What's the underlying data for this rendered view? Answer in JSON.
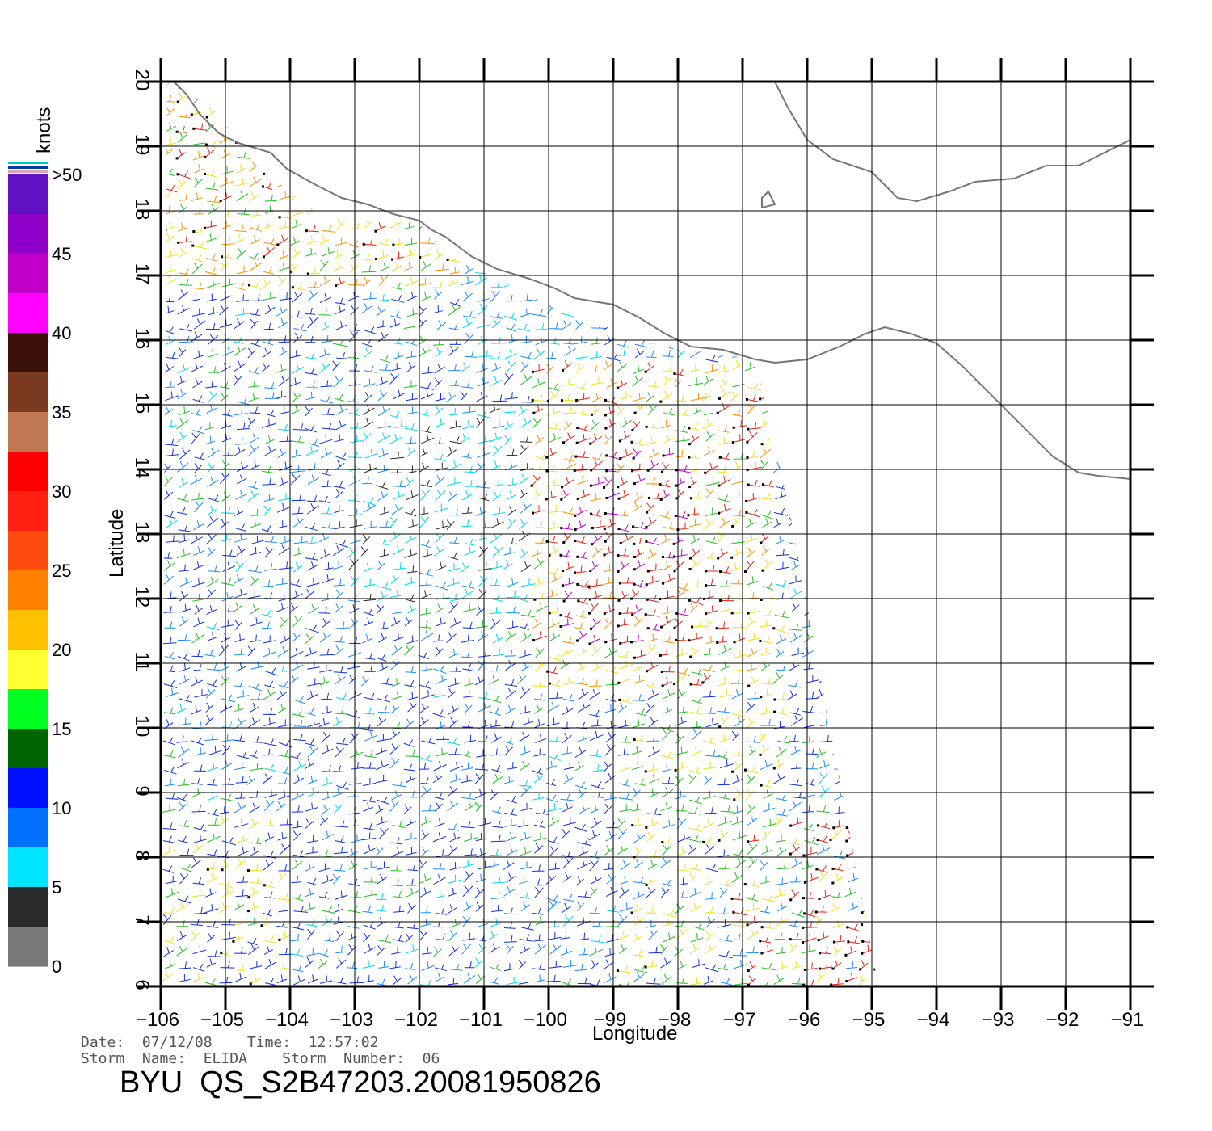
{
  "map": {
    "x_label": "Longitude",
    "y_label": "Latitude",
    "lon_range": [
      -106,
      -91
    ],
    "lat_range": [
      6,
      20
    ],
    "lon_ticks": [
      -106,
      -105,
      -104,
      -103,
      -102,
      -101,
      -100,
      -99,
      -98,
      -97,
      -96,
      -95,
      -94,
      -93,
      -92,
      -91
    ],
    "lat_ticks": [
      6,
      7,
      8,
      9,
      10,
      11,
      12,
      13,
      14,
      15,
      16,
      17,
      18,
      19,
      20
    ],
    "coastline_color": "#777777",
    "grid_color": "#000000"
  },
  "colorbar": {
    "unit": "knots",
    "labels": [
      "0",
      "5",
      "10",
      "15",
      "20",
      "25",
      "30",
      "35",
      "40",
      "45",
      ">50"
    ],
    "colors": [
      "#7a7a7a",
      "#2a2a2a",
      "#00e5ff",
      "#0070ff",
      "#0010ff",
      "#006400",
      "#00ff20",
      "#ffff30",
      "#ffc000",
      "#ff8000",
      "#ff4a10",
      "#ff2010",
      "#ff0000",
      "#c07850",
      "#7a3a20",
      "#3a1008",
      "#ff00ff",
      "#c000c8",
      "#9000c8",
      "#6010c0"
    ]
  },
  "footer": {
    "date_line": "Date:  07/12/08    Time:  12:57:02",
    "storm_line": "Storm  Name:  ELIDA    Storm  Number:  06",
    "product_id": "BYU  QS_S2B47203.20081950826"
  }
}
